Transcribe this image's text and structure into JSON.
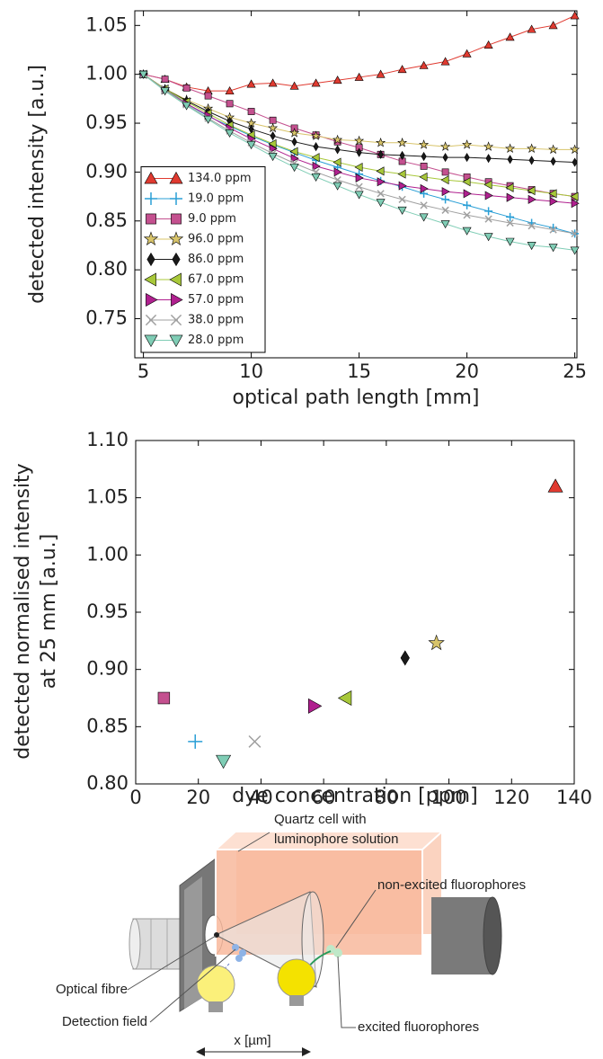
{
  "chart_data": [
    {
      "type": "line",
      "xlabel": "optical path length  [mm]",
      "ylabel": "detected intensity [a.u.]",
      "x": [
        5,
        6,
        7,
        8,
        9,
        10,
        11,
        12,
        13,
        14,
        15,
        16,
        17,
        18,
        19,
        20,
        21,
        22,
        23,
        24,
        25
      ],
      "xlim": [
        4.6,
        25.1
      ],
      "xticks": [
        5,
        10,
        15,
        20,
        25
      ],
      "ylim": [
        0.71,
        1.065
      ],
      "yticks": [
        0.75,
        {
          "value": 0.8,
          "label": "0.80"
        },
        0.85,
        {
          "value": 0.9,
          "label": "0.90"
        },
        0.95,
        {
          "value": 1.0,
          "label": "1.00"
        },
        1.05
      ],
      "legend": "lower left",
      "grid": false,
      "series": [
        {
          "name": "134.0 ppm",
          "color": "#e03a30",
          "marker": "^",
          "values": [
            1.0,
            0.995,
            0.987,
            0.983,
            0.983,
            0.99,
            0.991,
            0.988,
            0.991,
            0.994,
            0.997,
            1.0,
            1.005,
            1.009,
            1.013,
            1.021,
            1.03,
            1.038,
            1.046,
            1.05,
            1.06
          ]
        },
        {
          "name": "19.0 ppm",
          "color": "#2a9fd6",
          "marker": "+",
          "values": [
            1.0,
            0.985,
            0.97,
            0.957,
            0.947,
            0.937,
            0.928,
            0.92,
            0.912,
            0.905,
            0.898,
            0.891,
            0.885,
            0.878,
            0.872,
            0.866,
            0.86,
            0.854,
            0.848,
            0.843,
            0.837
          ]
        },
        {
          "name": "9.0 ppm",
          "color": "#c4508f",
          "marker": "s",
          "values": [
            1.0,
            0.995,
            0.986,
            0.978,
            0.97,
            0.962,
            0.953,
            0.945,
            0.938,
            0.931,
            0.925,
            0.918,
            0.911,
            0.906,
            0.9,
            0.895,
            0.89,
            0.886,
            0.882,
            0.878,
            0.875
          ]
        },
        {
          "name": "96.0 ppm",
          "color": "#d8c46a",
          "marker": "*",
          "values": [
            1.0,
            0.985,
            0.974,
            0.965,
            0.956,
            0.95,
            0.945,
            0.94,
            0.937,
            0.933,
            0.932,
            0.93,
            0.93,
            0.928,
            0.926,
            0.928,
            0.926,
            0.924,
            0.924,
            0.923,
            0.923
          ]
        },
        {
          "name": "86.0 ppm",
          "color": "#1a1a1a",
          "marker": "D",
          "values": [
            1.0,
            0.985,
            0.973,
            0.962,
            0.952,
            0.944,
            0.937,
            0.931,
            0.926,
            0.923,
            0.92,
            0.918,
            0.917,
            0.916,
            0.915,
            0.915,
            0.914,
            0.913,
            0.912,
            0.911,
            0.91
          ]
        },
        {
          "name": "67.0 ppm",
          "color": "#a8c83a",
          "marker": "<",
          "values": [
            1.0,
            0.985,
            0.972,
            0.96,
            0.948,
            0.938,
            0.929,
            0.921,
            0.915,
            0.91,
            0.905,
            0.901,
            0.898,
            0.895,
            0.892,
            0.89,
            0.887,
            0.884,
            0.881,
            0.878,
            0.875
          ]
        },
        {
          "name": "57.0 ppm",
          "color": "#b0208f",
          "marker": ">",
          "values": [
            1.0,
            0.984,
            0.97,
            0.958,
            0.945,
            0.934,
            0.924,
            0.914,
            0.906,
            0.9,
            0.894,
            0.89,
            0.886,
            0.883,
            0.88,
            0.878,
            0.876,
            0.874,
            0.872,
            0.87,
            0.868
          ]
        },
        {
          "name": "38.0 ppm",
          "color": "#a0a0a0",
          "marker": "x",
          "values": [
            1.0,
            0.984,
            0.969,
            0.955,
            0.942,
            0.93,
            0.919,
            0.909,
            0.9,
            0.892,
            0.885,
            0.878,
            0.872,
            0.866,
            0.861,
            0.856,
            0.852,
            0.848,
            0.845,
            0.841,
            0.837
          ]
        },
        {
          "name": "28.0 ppm",
          "color": "#7fcdb5",
          "marker": "v",
          "values": [
            1.0,
            0.983,
            0.968,
            0.954,
            0.94,
            0.928,
            0.916,
            0.905,
            0.895,
            0.886,
            0.877,
            0.869,
            0.861,
            0.854,
            0.847,
            0.84,
            0.834,
            0.829,
            0.825,
            0.823,
            0.82
          ]
        }
      ]
    },
    {
      "type": "scatter",
      "xlabel": "dye concentration [ppm]",
      "ylabel": [
        "detected normalised intensity",
        "at 25 mm [a.u.]"
      ],
      "x": [
        9,
        19,
        28,
        38,
        57,
        67,
        86,
        96,
        134
      ],
      "values": [
        0.875,
        0.837,
        0.82,
        0.837,
        0.868,
        0.875,
        0.91,
        0.923,
        1.06
      ],
      "colors": [
        "#c4508f",
        "#2a9fd6",
        "#7fcdb5",
        "#a0a0a0",
        "#b0208f",
        "#a8c83a",
        "#1a1a1a",
        "#d8c46a",
        "#e03a30"
      ],
      "markers": [
        "s",
        "+",
        "v",
        "x",
        ">",
        "<",
        "D",
        "*",
        "^"
      ],
      "xlim": [
        0,
        140
      ],
      "xticks": [
        0,
        20,
        40,
        60,
        80,
        100,
        120,
        140
      ],
      "ylim": [
        0.8,
        1.1
      ],
      "yticks": [
        {
          "value": 0.8,
          "label": "0.80"
        },
        0.85,
        {
          "value": 0.9,
          "label": "0.90"
        },
        0.95,
        {
          "value": 1.0,
          "label": "1.00"
        },
        1.05,
        {
          "value": 1.1,
          "label": "1.10"
        }
      ],
      "grid": false
    }
  ],
  "diagram": {
    "cell_label": [
      "Quartz cell with",
      "luminophore solution"
    ],
    "non_excited": "non-excited fluorophores",
    "optical_fibre": "Optical fibre",
    "detection_field": "Detection field",
    "excited": "excited fluorophores",
    "distance": "x [µm]"
  }
}
